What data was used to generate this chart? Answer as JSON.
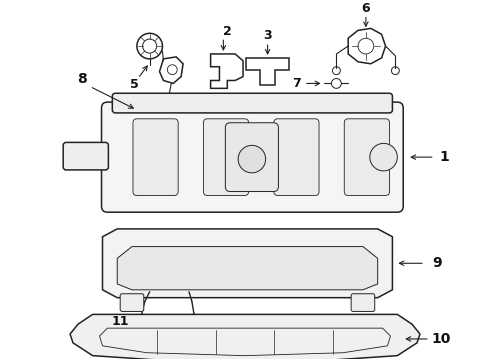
{
  "bg_color": "#ffffff",
  "line_color": "#222222",
  "text_color": "#111111",
  "figsize": [
    4.9,
    3.6
  ],
  "dpi": 100
}
